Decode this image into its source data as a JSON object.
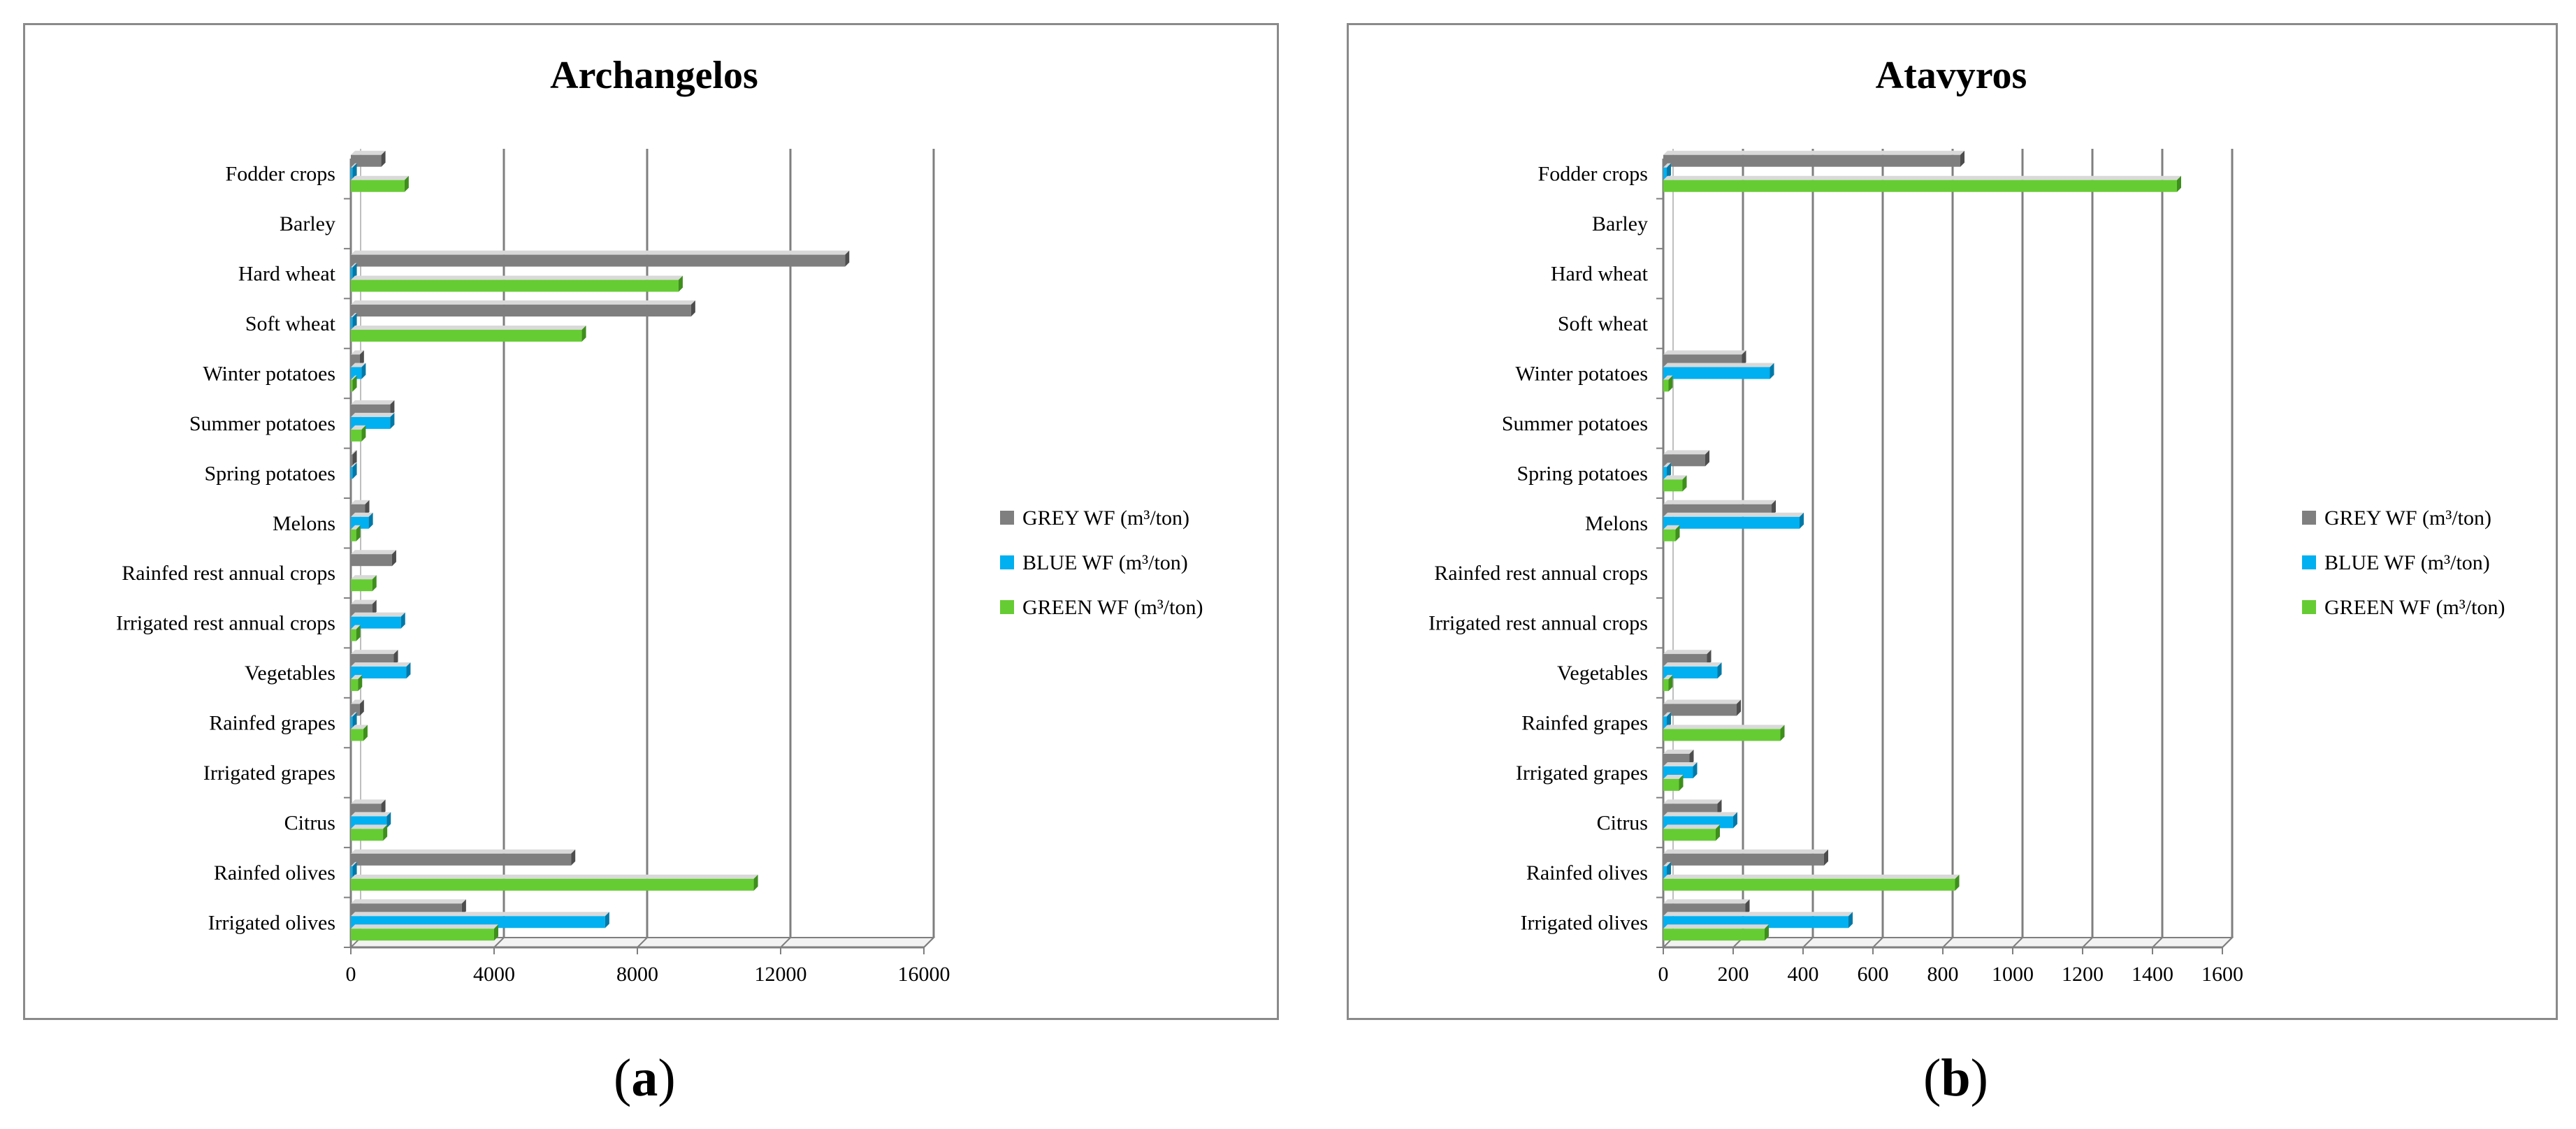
{
  "colors": {
    "grey": "#7f7f7f",
    "blue": "#00b0f0",
    "green": "#66cc33",
    "grid": "#7f7f7f",
    "frame": "#8a8a8a"
  },
  "chart_data": [
    {
      "type": "bar",
      "orientation": "horizontal",
      "title": "Archangelos",
      "caption": {
        "open": "(",
        "letter": "a",
        "close": ")"
      },
      "categories": [
        "Fodder crops",
        "Barley",
        "Hard wheat",
        "Soft wheat",
        "Winter potatoes",
        "Summer potatoes",
        "Spring potatoes",
        "Melons",
        "Rainfed rest annual crops",
        "Irrigated rest annual crops",
        "Vegetables",
        "Rainfed grapes",
        "Irrigated grapes",
        "Citrus",
        "Rainfed olives",
        "Irrigated olives"
      ],
      "xlim": [
        0,
        16000
      ],
      "xticks": [
        0,
        4000,
        8000,
        12000,
        16000
      ],
      "tick_labels": [
        "0",
        "4000",
        "8000",
        "12000",
        "16000"
      ],
      "legend": [
        "GREY WF (m³/ton)",
        "BLUE WF (m³/ton)",
        "GREEN WF (m³/ton)"
      ],
      "series": [
        {
          "name": "GREY WF (m³/ton)",
          "values": [
            850,
            0,
            13800,
            9500,
            250,
            1100,
            50,
            400,
            1150,
            600,
            1200,
            250,
            0,
            850,
            6150,
            3100
          ]
        },
        {
          "name": "BLUE WF (m³/ton)",
          "values": [
            50,
            0,
            50,
            50,
            300,
            1100,
            50,
            500,
            0,
            1400,
            1550,
            50,
            0,
            1000,
            50,
            7100
          ]
        },
        {
          "name": "GREEN WF (m³/ton)",
          "values": [
            1500,
            0,
            9150,
            6450,
            50,
            300,
            0,
            150,
            600,
            150,
            200,
            350,
            0,
            900,
            11250,
            4000
          ]
        }
      ]
    },
    {
      "type": "bar",
      "orientation": "horizontal",
      "title": "Atavyros",
      "caption": {
        "open": "(",
        "letter": "b",
        "close": ")"
      },
      "categories": [
        "Fodder crops",
        "Barley",
        "Hard wheat",
        "Soft wheat",
        "Winter potatoes",
        "Summer potatoes",
        "Spring potatoes",
        "Melons",
        "Rainfed rest annual crops",
        "Irrigated rest annual crops",
        "Vegetables",
        "Rainfed grapes",
        "Irrigated grapes",
        "Citrus",
        "Rainfed olives",
        "Irrigated olives"
      ],
      "xlim": [
        0,
        1600
      ],
      "xticks": [
        0,
        200,
        400,
        600,
        800,
        1000,
        1200,
        1400,
        1600
      ],
      "tick_labels": [
        "0",
        "200",
        "400",
        "600",
        "800",
        "1000",
        "1200",
        "1400",
        "1600"
      ],
      "legend": [
        "GREY WF (m³/ton)",
        "BLUE WF (m³/ton)",
        "GREEN WF (m³/ton)"
      ],
      "series": [
        {
          "name": "GREY WF (m³/ton)",
          "values": [
            850,
            0,
            0,
            0,
            225,
            0,
            120,
            310,
            0,
            0,
            125,
            210,
            75,
            155,
            460,
            235
          ]
        },
        {
          "name": "BLUE WF (m³/ton)",
          "values": [
            10,
            0,
            0,
            0,
            305,
            0,
            10,
            390,
            0,
            0,
            155,
            10,
            85,
            200,
            10,
            530
          ]
        },
        {
          "name": "GREEN WF (m³/ton)",
          "values": [
            1470,
            0,
            0,
            0,
            15,
            0,
            55,
            35,
            0,
            0,
            15,
            335,
            45,
            150,
            835,
            290
          ]
        }
      ]
    }
  ]
}
